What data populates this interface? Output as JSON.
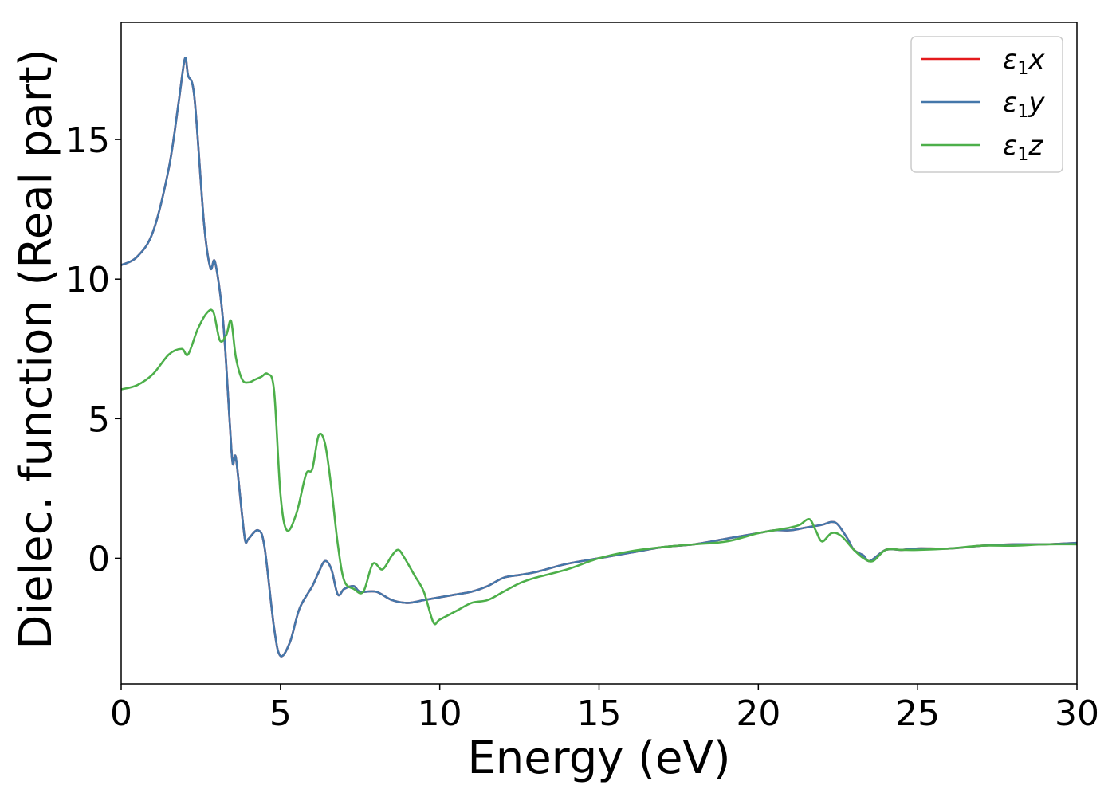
{
  "chart_data": {
    "type": "line",
    "title": "",
    "xlabel": "Energy (eV)",
    "ylabel": "Dielec. function (Real part)",
    "xlim": [
      0,
      30
    ],
    "ylim": [
      -4.5,
      19.2
    ],
    "xticks": [
      "0",
      "5",
      "10",
      "15",
      "20",
      "25",
      "30"
    ],
    "xtick_values": [
      0,
      5,
      10,
      15,
      20,
      25,
      30
    ],
    "yticks": [
      "0",
      "5",
      "10",
      "15"
    ],
    "ytick_values": [
      0,
      5,
      10,
      15
    ],
    "grid": false,
    "legend_position": "top-right",
    "series": [
      {
        "name": "ε₁x",
        "legend": {
          "symbol": "ε",
          "sub": "1",
          "axis": "x"
        },
        "color": "#e41a1c",
        "x": [
          0,
          0.5,
          1.0,
          1.5,
          1.8,
          2.0,
          2.1,
          2.3,
          2.6,
          2.8,
          2.95,
          3.2,
          3.4,
          3.5,
          3.6,
          3.8,
          3.9,
          4.0,
          4.3,
          4.5,
          4.8,
          5.0,
          5.3,
          5.6,
          6.0,
          6.2,
          6.4,
          6.6,
          6.8,
          7.0,
          7.3,
          7.5,
          8.0,
          8.5,
          9.0,
          9.5,
          10.0,
          10.5,
          11.0,
          11.5,
          12.0,
          12.5,
          13.0,
          14.0,
          15.0,
          16.0,
          17.0,
          18.0,
          19.0,
          20.0,
          20.5,
          21.0,
          21.5,
          22.0,
          22.3,
          22.5,
          22.8,
          23.0,
          23.3,
          23.5,
          24.0,
          24.5,
          25.0,
          26.0,
          27.0,
          28.0,
          29.0,
          30.0
        ],
        "y": [
          10.5,
          10.8,
          11.7,
          14.0,
          16.3,
          17.9,
          17.3,
          16.5,
          12.0,
          10.4,
          10.6,
          8.5,
          5.0,
          3.4,
          3.6,
          1.5,
          0.6,
          0.7,
          1.0,
          0.4,
          -2.5,
          -3.5,
          -3.0,
          -1.8,
          -1.0,
          -0.5,
          -0.1,
          -0.4,
          -1.3,
          -1.1,
          -1.0,
          -1.2,
          -1.2,
          -1.5,
          -1.6,
          -1.5,
          -1.4,
          -1.3,
          -1.2,
          -1.0,
          -0.7,
          -0.6,
          -0.5,
          -0.2,
          0.0,
          0.2,
          0.4,
          0.5,
          0.7,
          0.9,
          1.0,
          1.0,
          1.1,
          1.2,
          1.3,
          1.2,
          0.7,
          0.3,
          0.1,
          -0.1,
          0.3,
          0.3,
          0.35,
          0.35,
          0.45,
          0.5,
          0.5,
          0.55
        ]
      },
      {
        "name": "ε₁y",
        "legend": {
          "symbol": "ε",
          "sub": "1",
          "axis": "y"
        },
        "color": "#4477aa",
        "x": [
          0,
          0.5,
          1.0,
          1.5,
          1.8,
          2.0,
          2.1,
          2.3,
          2.6,
          2.8,
          2.95,
          3.2,
          3.4,
          3.5,
          3.6,
          3.8,
          3.9,
          4.0,
          4.3,
          4.5,
          4.8,
          5.0,
          5.3,
          5.6,
          6.0,
          6.2,
          6.4,
          6.6,
          6.8,
          7.0,
          7.3,
          7.5,
          8.0,
          8.5,
          9.0,
          9.5,
          10.0,
          10.5,
          11.0,
          11.5,
          12.0,
          12.5,
          13.0,
          14.0,
          15.0,
          16.0,
          17.0,
          18.0,
          19.0,
          20.0,
          20.5,
          21.0,
          21.5,
          22.0,
          22.3,
          22.5,
          22.8,
          23.0,
          23.3,
          23.5,
          24.0,
          24.5,
          25.0,
          26.0,
          27.0,
          28.0,
          29.0,
          30.0
        ],
        "y": [
          10.5,
          10.8,
          11.7,
          14.0,
          16.3,
          17.9,
          17.3,
          16.5,
          12.0,
          10.4,
          10.6,
          8.5,
          5.0,
          3.4,
          3.6,
          1.5,
          0.6,
          0.7,
          1.0,
          0.4,
          -2.5,
          -3.5,
          -3.0,
          -1.8,
          -1.0,
          -0.5,
          -0.1,
          -0.4,
          -1.3,
          -1.1,
          -1.0,
          -1.2,
          -1.2,
          -1.5,
          -1.6,
          -1.5,
          -1.4,
          -1.3,
          -1.2,
          -1.0,
          -0.7,
          -0.6,
          -0.5,
          -0.2,
          0.0,
          0.2,
          0.4,
          0.5,
          0.7,
          0.9,
          1.0,
          1.0,
          1.1,
          1.2,
          1.3,
          1.2,
          0.7,
          0.3,
          0.1,
          -0.1,
          0.3,
          0.3,
          0.35,
          0.35,
          0.45,
          0.5,
          0.5,
          0.55
        ]
      },
      {
        "name": "ε₁z",
        "legend": {
          "symbol": "ε",
          "sub": "1",
          "axis": "z"
        },
        "color": "#4daf4a",
        "x": [
          0,
          0.5,
          1.0,
          1.5,
          1.9,
          2.1,
          2.4,
          2.7,
          2.9,
          3.1,
          3.3,
          3.45,
          3.6,
          3.8,
          4.0,
          4.2,
          4.4,
          4.6,
          4.8,
          5.0,
          5.2,
          5.5,
          5.8,
          6.0,
          6.2,
          6.4,
          6.6,
          6.8,
          7.0,
          7.3,
          7.6,
          7.9,
          8.2,
          8.5,
          8.7,
          8.9,
          9.2,
          9.5,
          9.8,
          10.0,
          10.5,
          11.0,
          11.5,
          12.0,
          12.5,
          13.0,
          14.0,
          15.0,
          16.0,
          17.0,
          18.0,
          19.0,
          20.0,
          20.5,
          21.0,
          21.3,
          21.6,
          21.8,
          22.0,
          22.3,
          22.6,
          23.0,
          23.3,
          23.6,
          24.0,
          24.5,
          25.0,
          26.0,
          27.0,
          28.0,
          29.0,
          30.0
        ],
        "y": [
          6.05,
          6.2,
          6.6,
          7.3,
          7.5,
          7.3,
          8.2,
          8.8,
          8.8,
          7.8,
          8.0,
          8.5,
          7.2,
          6.4,
          6.3,
          6.4,
          6.5,
          6.6,
          6.0,
          2.3,
          1.0,
          1.6,
          3.0,
          3.2,
          4.4,
          4.1,
          2.5,
          0.5,
          -0.8,
          -1.1,
          -1.2,
          -0.2,
          -0.4,
          0.1,
          0.3,
          0.0,
          -0.6,
          -1.2,
          -2.3,
          -2.2,
          -1.9,
          -1.6,
          -1.5,
          -1.2,
          -0.9,
          -0.7,
          -0.4,
          0.0,
          0.25,
          0.4,
          0.5,
          0.6,
          0.9,
          1.0,
          1.1,
          1.2,
          1.4,
          1.0,
          0.6,
          0.9,
          0.8,
          0.3,
          0.0,
          -0.1,
          0.3,
          0.3,
          0.3,
          0.35,
          0.45,
          0.45,
          0.5,
          0.5
        ]
      }
    ]
  }
}
